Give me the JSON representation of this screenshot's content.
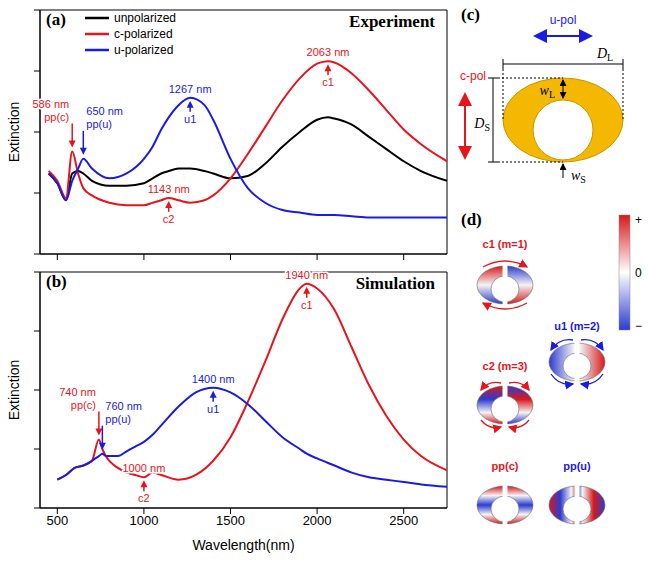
{
  "chart_data": [
    {
      "type": "line",
      "panel": "(a)",
      "title": "Experiment",
      "y_label": "Extinction",
      "x": [
        450,
        500,
        550,
        586,
        620,
        650,
        700,
        800,
        900,
        1000,
        1050,
        1100,
        1143,
        1200,
        1267,
        1350,
        1400,
        1500,
        1600,
        1700,
        1800,
        1900,
        2000,
        2063,
        2100,
        2200,
        2300,
        2400,
        2500,
        2600,
        2750
      ],
      "series": [
        {
          "name": "unpolarized",
          "color": "#000000",
          "values": [
            0.33,
            0.29,
            0.22,
            0.33,
            0.34,
            0.33,
            0.3,
            0.28,
            0.28,
            0.29,
            0.31,
            0.33,
            0.34,
            0.35,
            0.35,
            0.34,
            0.33,
            0.31,
            0.32,
            0.37,
            0.44,
            0.5,
            0.55,
            0.56,
            0.555,
            0.53,
            0.48,
            0.43,
            0.38,
            0.34,
            0.3
          ]
        },
        {
          "name": "c-polarized",
          "color": "#e8141c",
          "values": [
            0.34,
            0.3,
            0.23,
            0.42,
            0.33,
            0.27,
            0.24,
            0.21,
            0.2,
            0.2,
            0.21,
            0.22,
            0.23,
            0.22,
            0.21,
            0.22,
            0.24,
            0.31,
            0.41,
            0.52,
            0.63,
            0.72,
            0.78,
            0.79,
            0.785,
            0.74,
            0.67,
            0.59,
            0.51,
            0.45,
            0.38
          ]
        },
        {
          "name": "u-polarized",
          "color": "#1a1ae6",
          "values": [
            0.33,
            0.29,
            0.22,
            0.3,
            0.35,
            0.39,
            0.35,
            0.31,
            0.33,
            0.39,
            0.44,
            0.51,
            0.56,
            0.61,
            0.64,
            0.61,
            0.55,
            0.39,
            0.27,
            0.21,
            0.18,
            0.17,
            0.16,
            0.16,
            0.16,
            0.155,
            0.15,
            0.15,
            0.15,
            0.15,
            0.15
          ]
        }
      ],
      "xlim": [
        400,
        2750
      ],
      "xticks": [
        500,
        1000,
        1500,
        2000,
        2500
      ],
      "ylim": [
        0,
        1
      ],
      "yticks": [
        0,
        0.25,
        0.5,
        0.75,
        1
      ],
      "tick_labels": false,
      "legend": "upper left",
      "annotations": [
        {
          "label": "pp(c)",
          "text": "586 nm",
          "x": 586,
          "y": 0.42,
          "color": "#e8141c"
        },
        {
          "label": "pp(u)",
          "text": "650 nm",
          "x": 650,
          "y": 0.39,
          "color": "#1a1ae6"
        },
        {
          "label": "c2",
          "text": "1143 nm",
          "x": 1143,
          "y": 0.23,
          "color": "#e8141c"
        },
        {
          "label": "u1",
          "text": "1267 nm",
          "x": 1267,
          "y": 0.64,
          "color": "#1a1ae6"
        },
        {
          "label": "c1",
          "text": "2063 nm",
          "x": 2063,
          "y": 0.79,
          "color": "#e8141c"
        }
      ]
    },
    {
      "type": "line",
      "panel": "(b)",
      "title": "Simulation",
      "y_label": "Extinction",
      "x_label": "Wavelength(nm)",
      "x": [
        500,
        550,
        600,
        650,
        700,
        740,
        760,
        780,
        850,
        900,
        950,
        1000,
        1050,
        1100,
        1200,
        1300,
        1400,
        1500,
        1600,
        1700,
        1800,
        1900,
        1940,
        2000,
        2100,
        2200,
        2300,
        2400,
        2500,
        2600,
        2750
      ],
      "series": [
        {
          "color": "#e8141c",
          "values": [
            0.12,
            0.14,
            0.17,
            0.18,
            0.2,
            0.29,
            0.25,
            0.22,
            0.17,
            0.15,
            0.14,
            0.13,
            0.15,
            0.14,
            0.12,
            0.14,
            0.2,
            0.3,
            0.45,
            0.62,
            0.8,
            0.93,
            0.95,
            0.93,
            0.84,
            0.68,
            0.52,
            0.39,
            0.29,
            0.22,
            0.16
          ]
        },
        {
          "color": "#1a1ae6",
          "values": [
            0.12,
            0.14,
            0.17,
            0.18,
            0.2,
            0.22,
            0.23,
            0.22,
            0.22,
            0.24,
            0.26,
            0.28,
            0.31,
            0.35,
            0.43,
            0.49,
            0.51,
            0.49,
            0.44,
            0.37,
            0.3,
            0.25,
            0.23,
            0.21,
            0.18,
            0.15,
            0.13,
            0.12,
            0.11,
            0.1,
            0.09
          ]
        }
      ],
      "xlim": [
        400,
        2750
      ],
      "xticks": [
        500,
        1000,
        1500,
        2000,
        2500
      ],
      "ylim": [
        0,
        1
      ],
      "yticks": [
        0,
        0.25,
        0.5,
        0.75,
        1
      ],
      "tick_labels": "x",
      "annotations": [
        {
          "label": "pp(c)",
          "text": "740 nm",
          "x": 740,
          "y": 0.29,
          "color": "#e8141c"
        },
        {
          "label": "pp(u)",
          "text": "760 nm",
          "x": 760,
          "y": 0.23,
          "color": "#1a1ae6"
        },
        {
          "label": "c2",
          "text": "1000 nm",
          "x": 1000,
          "y": 0.13,
          "color": "#e8141c"
        },
        {
          "label": "u1",
          "text": "1400 nm",
          "x": 1400,
          "y": 0.51,
          "color": "#1a1ae6"
        },
        {
          "label": "c1",
          "text": "1940 nm",
          "x": 1940,
          "y": 0.95,
          "color": "#e8141c"
        }
      ]
    }
  ],
  "diagrams": {
    "c": {
      "panel": "(c)",
      "u_pol": {
        "text": "u-pol",
        "color": "#1a1ae6"
      },
      "c_pol": {
        "text": "c-pol",
        "color": "#e8141c"
      },
      "D_L": {
        "base": "D",
        "sub": "L"
      },
      "D_S": {
        "base": "D",
        "sub": "S"
      },
      "w_L": {
        "base": "w",
        "sub": "L"
      },
      "w_S": {
        "base": "w",
        "sub": "S"
      }
    },
    "d": {
      "panel": "(d)",
      "modes": [
        {
          "label": "c1 (m=1)",
          "color": "#e8141c"
        },
        {
          "label": "c2 (m=3)",
          "color": "#e8141c"
        },
        {
          "label": "u1 (m=2)",
          "color": "#1a1ae6"
        },
        {
          "label": "pp(c)",
          "color": "#e8141c"
        },
        {
          "label": "pp(u)",
          "color": "#1a1ae6"
        }
      ],
      "colorbar": [
        "+",
        "0",
        "−"
      ]
    }
  }
}
